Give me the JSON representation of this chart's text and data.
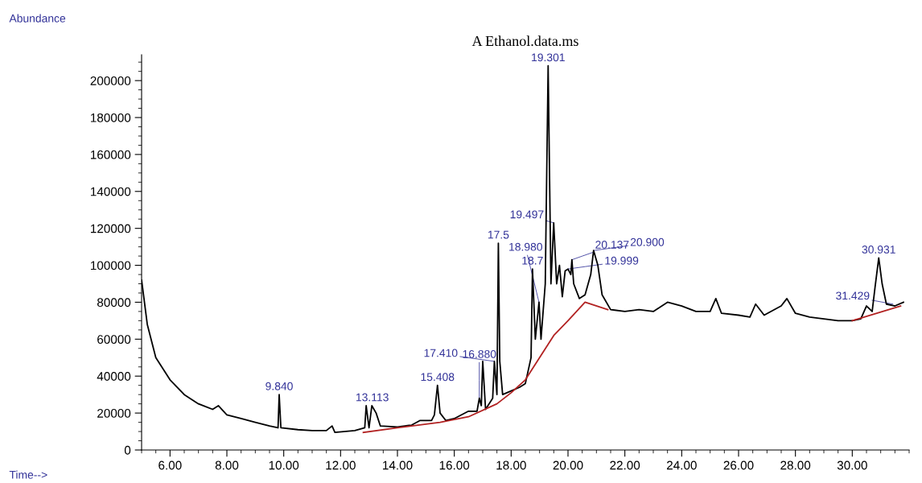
{
  "chart_data": {
    "type": "line",
    "title": "A Ethanol.data.ms",
    "xlabel": "Time-->",
    "ylabel": "Abundance",
    "xlim": [
      5.0,
      32.0
    ],
    "ylim": [
      0,
      214000
    ],
    "xticks": [
      {
        "value": 6,
        "label": "6.00"
      },
      {
        "value": 8,
        "label": "8.00"
      },
      {
        "value": 10,
        "label": "10.00"
      },
      {
        "value": 12,
        "label": "12.00"
      },
      {
        "value": 14,
        "label": "14.00"
      },
      {
        "value": 16,
        "label": "16.00"
      },
      {
        "value": 18,
        "label": "18.00"
      },
      {
        "value": 20,
        "label": "20.00"
      },
      {
        "value": 22,
        "label": "22.00"
      },
      {
        "value": 24,
        "label": "24.00"
      },
      {
        "value": 26,
        "label": "26.00"
      },
      {
        "value": 28,
        "label": "28.00"
      },
      {
        "value": 30,
        "label": "30.00"
      }
    ],
    "yticks": [
      0,
      20000,
      40000,
      60000,
      80000,
      100000,
      120000,
      140000,
      160000,
      180000,
      200000
    ],
    "grid": false,
    "legend": false,
    "marker": "none",
    "line_style": "solid",
    "series": [
      {
        "color": "#000000",
        "x": [
          5.0,
          5.2,
          5.5,
          6.0,
          6.5,
          7.0,
          7.5,
          7.7,
          8.0,
          8.5,
          9.0,
          9.5,
          9.8,
          9.84,
          9.9,
          10.5,
          11.0,
          11.5,
          11.7,
          11.8,
          12.5,
          12.85,
          12.9,
          13.0,
          13.1,
          13.25,
          13.4,
          14.0,
          14.5,
          14.8,
          15.2,
          15.3,
          15.408,
          15.5,
          15.7,
          16.0,
          16.5,
          16.8,
          16.88,
          16.95,
          17.0,
          17.1,
          17.35,
          17.41,
          17.5,
          17.55,
          17.6,
          17.7,
          18.0,
          18.3,
          18.5,
          18.7,
          18.75,
          18.85,
          18.98,
          19.05,
          19.2,
          19.301,
          19.4,
          19.497,
          19.6,
          19.7,
          19.8,
          19.9,
          19.999,
          20.1,
          20.137,
          20.2,
          20.4,
          20.6,
          20.8,
          20.9,
          21.05,
          21.2,
          21.5,
          22.0,
          22.5,
          23.0,
          23.5,
          24.0,
          24.5,
          25.0,
          25.2,
          25.4,
          26.0,
          26.4,
          26.6,
          26.9,
          27.5,
          27.7,
          28.0,
          28.5,
          29.0,
          29.5,
          30.0,
          30.3,
          30.5,
          30.7,
          30.8,
          30.931,
          31.05,
          31.2,
          31.5,
          31.8
        ],
        "values": [
          92000,
          68000,
          50000,
          38000,
          30000,
          25000,
          22000,
          24000,
          19000,
          17000,
          15000,
          13000,
          12000,
          30000,
          12000,
          11000,
          10500,
          10500,
          13000,
          9500,
          10500,
          12000,
          24000,
          12000,
          24000,
          20000,
          13000,
          12500,
          13500,
          16000,
          16000,
          19000,
          35000,
          20000,
          16000,
          17000,
          21000,
          21000,
          28000,
          24000,
          48000,
          22000,
          28000,
          48000,
          30000,
          112000,
          48000,
          30000,
          32000,
          34000,
          36000,
          50000,
          98000,
          60000,
          80000,
          60000,
          90000,
          208000,
          90000,
          123000,
          90000,
          100000,
          83000,
          97000,
          98000,
          95000,
          103000,
          90000,
          82000,
          84000,
          95000,
          108000,
          100000,
          84000,
          76000,
          75000,
          76000,
          75000,
          80000,
          78000,
          75000,
          75000,
          82000,
          74000,
          73000,
          72000,
          79000,
          73000,
          78000,
          82000,
          74000,
          72000,
          71000,
          70000,
          70000,
          71000,
          78000,
          75000,
          88000,
          104000,
          90000,
          79000,
          78000,
          80000
        ]
      },
      {
        "color": "#b22222",
        "x": [
          12.8,
          14.0,
          15.5,
          16.5,
          17.5,
          18.0,
          18.5,
          19.0,
          19.5,
          20.0,
          20.6,
          21.4,
          21.5,
          30.0,
          31.7
        ],
        "values": [
          9500,
          12000,
          15000,
          18000,
          25000,
          31000,
          38000,
          50000,
          62000,
          70000,
          80000,
          76000,
          null,
          70000,
          78000
        ]
      }
    ],
    "annotations": [
      {
        "text": "9.840",
        "x": 9.84,
        "y": 30000
      },
      {
        "text": "13.113",
        "x": 13.113,
        "y": 24000
      },
      {
        "text": "15.408",
        "x": 15.408,
        "y": 35000
      },
      {
        "text": "16.880",
        "x": 16.88,
        "y": 28000
      },
      {
        "text": "17.410",
        "x": 17.41,
        "y": 48000
      },
      {
        "text": "17.5",
        "x": 17.55,
        "y": 112000
      },
      {
        "text": "18.7",
        "x": 18.75,
        "y": 98000
      },
      {
        "text": "18.980",
        "x": 18.98,
        "y": 80000
      },
      {
        "text": "19.301",
        "x": 19.301,
        "y": 208000
      },
      {
        "text": "19.497",
        "x": 19.497,
        "y": 123000
      },
      {
        "text": "19.999",
        "x": 19.999,
        "y": 98000
      },
      {
        "text": "20.137",
        "x": 20.137,
        "y": 103000
      },
      {
        "text": "20.900",
        "x": 20.9,
        "y": 108000
      },
      {
        "text": "30.931",
        "x": 30.931,
        "y": 104000
      },
      {
        "text": "31.429",
        "x": 31.429,
        "y": 79000
      }
    ]
  }
}
